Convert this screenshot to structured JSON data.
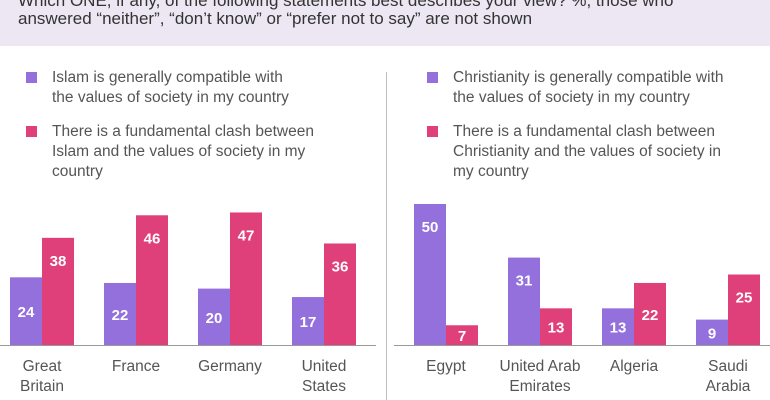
{
  "header": {
    "question_line1": "Which ONE, if any, of the following statements best describes your view? %, those who",
    "question_line2": "answered “neither”, “don’t know” or “prefer not to say” are not shown"
  },
  "colors": {
    "compatible": "#9370db",
    "clash": "#e0407a",
    "header_bg": "#ece7f3"
  },
  "chart_data": [
    {
      "type": "bar",
      "series": [
        {
          "name": "Islam is generally compatible with the values of society in my country",
          "values": [
            24,
            22,
            20,
            17
          ]
        },
        {
          "name": "There is a fundamental clash between Islam and the values of society in my country",
          "values": [
            38,
            46,
            47,
            36
          ]
        }
      ],
      "categories": [
        [
          "Great",
          "Britain"
        ],
        [
          "France"
        ],
        [
          "Germany"
        ],
        [
          "United",
          "States"
        ]
      ],
      "legend": [
        [
          "Islam is generally compatible with",
          "the values of society in my country"
        ],
        [
          "There is a fundamental clash between",
          "Islam and the values of society in my",
          "country"
        ]
      ],
      "ylim": [
        0,
        50
      ]
    },
    {
      "type": "bar",
      "series": [
        {
          "name": "Christianity is generally compatible with the values of society in my country",
          "values": [
            50,
            31,
            13,
            9
          ]
        },
        {
          "name": "There is a fundamental clash between Christianity and the values of society in my country",
          "values": [
            7,
            13,
            22,
            25
          ]
        }
      ],
      "categories": [
        [
          "Egypt"
        ],
        [
          "United Arab",
          "Emirates"
        ],
        [
          "Algeria"
        ],
        [
          "Saudi",
          "Arabia"
        ]
      ],
      "legend": [
        [
          "Christianity is generally compatible with",
          "the values of society in my country"
        ],
        [
          "There is a fundamental clash between",
          "Christianity and the values of society in",
          "my country"
        ]
      ],
      "ylim": [
        0,
        50
      ]
    }
  ]
}
